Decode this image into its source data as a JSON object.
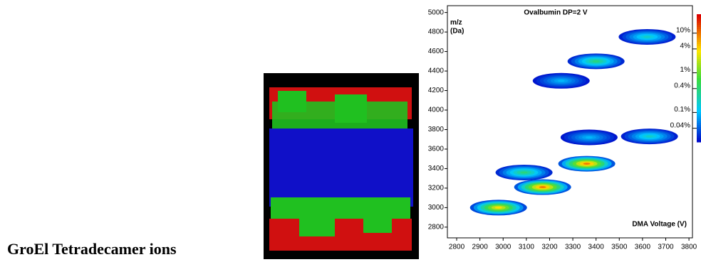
{
  "heading": "GroEl Tetradecamer ions",
  "chart_data": {
    "type": "heatmap",
    "title": "Ovalbumin DP=2 V",
    "ylabel": [
      "m/z",
      "(Da)"
    ],
    "xlabel": "DMA Voltage (V)",
    "xlim": [
      2760,
      3815
    ],
    "ylim": [
      2690,
      5070
    ],
    "xticks": [
      2800,
      2900,
      3000,
      3100,
      3200,
      3300,
      3400,
      3500,
      3600,
      3700,
      3800
    ],
    "yticks": [
      2800,
      3000,
      3200,
      3400,
      3600,
      3800,
      4000,
      4200,
      4400,
      4600,
      4800,
      5000
    ],
    "clim": [
      0.018,
      30
    ],
    "cticks": [
      {
        "value": 10,
        "label": "10%"
      },
      {
        "value": 4,
        "label": "4%"
      },
      {
        "value": 1,
        "label": "1%"
      },
      {
        "value": 0.4,
        "label": "0.4%"
      },
      {
        "value": 0.1,
        "label": "0.1%"
      },
      {
        "value": 0.04,
        "label": "0.04%"
      }
    ],
    "color_log_scale": true,
    "x": [
      2980,
      3170,
      3360,
      3090,
      3400,
      3620,
      3250,
      3630,
      3370
    ],
    "y": [
      3000,
      3210,
      3450,
      3360,
      4500,
      4750,
      4300,
      3730,
      3720
    ],
    "values": [
      4,
      10,
      10,
      0.4,
      0.4,
      0.2,
      0.1,
      0.2,
      0.1
    ]
  }
}
